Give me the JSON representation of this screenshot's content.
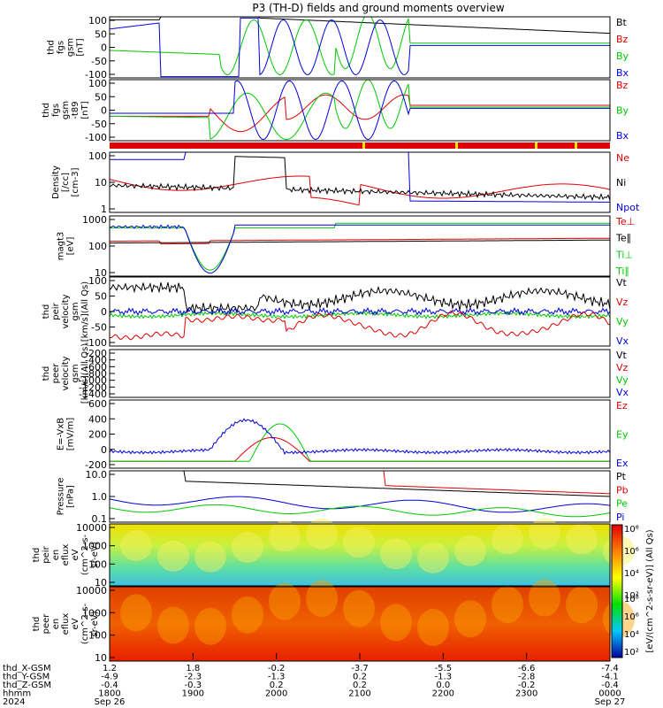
{
  "title": "P3 (TH-D) fields and ground moments overview",
  "colors": {
    "black": "#000000",
    "red": "#e00000",
    "green": "#00c800",
    "blue": "#0000e0",
    "bar_red": "#e00000",
    "bar_yellow": "#e8e800"
  },
  "chart_data": [
    {
      "id": "fgs",
      "type": "line",
      "ylabel": [
        "thd",
        "fgs",
        "gsm",
        "[nT]"
      ],
      "yticks": [
        "100",
        "50",
        "0",
        "-50",
        "-100"
      ],
      "ylim": [
        -100,
        100
      ],
      "legend": [
        {
          "label": "Bt",
          "color": "#000000"
        },
        {
          "label": "Bz",
          "color": "#e00000"
        },
        {
          "label": "By",
          "color": "#00c800"
        },
        {
          "label": "Bx",
          "color": "#0000e0"
        }
      ]
    },
    {
      "id": "fgs_dsl",
      "type": "line",
      "ylabel": [
        "thd",
        "fgs",
        "gsm",
        "-t89",
        "[nT]"
      ],
      "yticks": [
        "100",
        "50",
        "0",
        "-50",
        "-100"
      ],
      "ylim": [
        -120,
        120
      ],
      "legend": [
        {
          "label": "Bz",
          "color": "#e00000"
        },
        {
          "label": "By",
          "color": "#00c800"
        },
        {
          "label": "Bx",
          "color": "#0000e0"
        }
      ]
    },
    {
      "id": "density",
      "type": "line",
      "ylabel": [
        "Density",
        "[/cc]",
        "[cm-3]"
      ],
      "yticks": [
        "100",
        "10",
        "1"
      ],
      "scale": "log",
      "legend": [
        {
          "label": "Ne",
          "color": "#e00000"
        },
        {
          "label": "Ni",
          "color": "#000000"
        },
        {
          "label": "Npot",
          "color": "#0000e0"
        }
      ]
    },
    {
      "id": "temp",
      "type": "line",
      "ylabel": [
        "magt3",
        "[eV]"
      ],
      "yticks": [
        "1000",
        "100",
        "10"
      ],
      "scale": "log",
      "legend": [
        {
          "label": "Te⊥",
          "color": "#e00000"
        },
        {
          "label": "Te∥",
          "color": "#000000"
        },
        {
          "label": "Ti⊥",
          "color": "#00c800"
        },
        {
          "label": "Ti∥",
          "color": "#00c800"
        }
      ]
    },
    {
      "id": "peir_vel",
      "type": "line",
      "ylabel": [
        "thd",
        "peir",
        "velocity",
        "gsm",
        "[km/s](All Qs)"
      ],
      "yticks": [
        "100",
        "50",
        "0",
        "-50",
        "-100"
      ],
      "ylim": [
        -100,
        100
      ],
      "legend": [
        {
          "label": "Vt",
          "color": "#000000"
        },
        {
          "label": "Vz",
          "color": "#e00000"
        },
        {
          "label": "Vy",
          "color": "#00c800"
        },
        {
          "label": "Vx",
          "color": "#0000e0"
        }
      ]
    },
    {
      "id": "peer_vel",
      "type": "line",
      "ylabel": [
        "thd",
        "peer",
        "velocity",
        "gsm",
        "[km/s](All Qs)"
      ],
      "yticks": [
        "-200",
        "-400",
        "-600",
        "-800",
        "-1000",
        "-1200",
        "-1400"
      ],
      "ylim": [
        -1500,
        -150
      ],
      "legend": [
        {
          "label": "Vt",
          "color": "#000000"
        },
        {
          "label": "Vz",
          "color": "#e00000"
        },
        {
          "label": "Vy",
          "color": "#00c800"
        },
        {
          "label": "Vx",
          "color": "#0000e0"
        }
      ]
    },
    {
      "id": "efield",
      "type": "line",
      "ylabel": [
        "E=-VxB",
        "[mV/m]"
      ],
      "yticks": [
        "600",
        "400",
        "200",
        "0",
        "-200"
      ],
      "ylim": [
        -200,
        650
      ],
      "legend": [
        {
          "label": "Ez",
          "color": "#e00000"
        },
        {
          "label": "Ey",
          "color": "#00c800"
        },
        {
          "label": "Ex",
          "color": "#0000e0"
        }
      ]
    },
    {
      "id": "pressure",
      "type": "line",
      "ylabel": [
        "Pressure",
        "[nPa]"
      ],
      "yticks": [
        "10.0",
        "1.0",
        "0.1"
      ],
      "scale": "log",
      "legend": [
        {
          "label": "Pt",
          "color": "#000000"
        },
        {
          "label": "Pb",
          "color": "#e00000"
        },
        {
          "label": "Pe",
          "color": "#00c800"
        },
        {
          "label": "Pi",
          "color": "#0000e0"
        }
      ]
    },
    {
      "id": "peir_spec",
      "type": "heatmap",
      "ylabel": [
        "thd",
        "peir",
        "en",
        "eflux",
        "eV",
        "(cm^2-s-",
        "sr-eV)"
      ],
      "yticks": [
        "10000",
        "1000",
        "100",
        "10"
      ]
    },
    {
      "id": "peer_spec",
      "type": "heatmap",
      "ylabel": [
        "thd",
        "peer",
        "en",
        "eflux",
        "eV",
        "(cm^2-s-",
        "sr-eV)"
      ],
      "yticks": [
        "10000",
        "1000",
        "100",
        "10"
      ]
    }
  ],
  "colorbar": {
    "label": "[eV/(cm^2-s-sr-eV)] (All Qs)",
    "ticks": [
      "10⁸",
      "10⁶",
      "10⁴",
      "10²"
    ]
  },
  "xaxis": {
    "row_labels": [
      "thd_X-GSM",
      "thd_Y-GSM",
      "thd_Z-GSM",
      "hhmm",
      "2024"
    ],
    "columns": [
      {
        "x": [
          "1.2",
          "-4.9",
          "-0.4",
          "1800",
          "Sep 26"
        ]
      },
      {
        "x": [
          "1.8",
          "-2.3",
          "-0.3",
          "1900",
          ""
        ]
      },
      {
        "x": [
          "-0.2",
          "-1.3",
          "0.2",
          "2000",
          ""
        ]
      },
      {
        "x": [
          "-3.7",
          "0.2",
          "0.2",
          "2100",
          ""
        ]
      },
      {
        "x": [
          "-5.5",
          "-1.3",
          "0.0",
          "2200",
          ""
        ]
      },
      {
        "x": [
          "-6.6",
          "-2.8",
          "-0.2",
          "2300",
          ""
        ]
      },
      {
        "x": [
          "-7.4",
          "-4.1",
          "-0.4",
          "0000",
          "Sep 27"
        ]
      }
    ]
  }
}
